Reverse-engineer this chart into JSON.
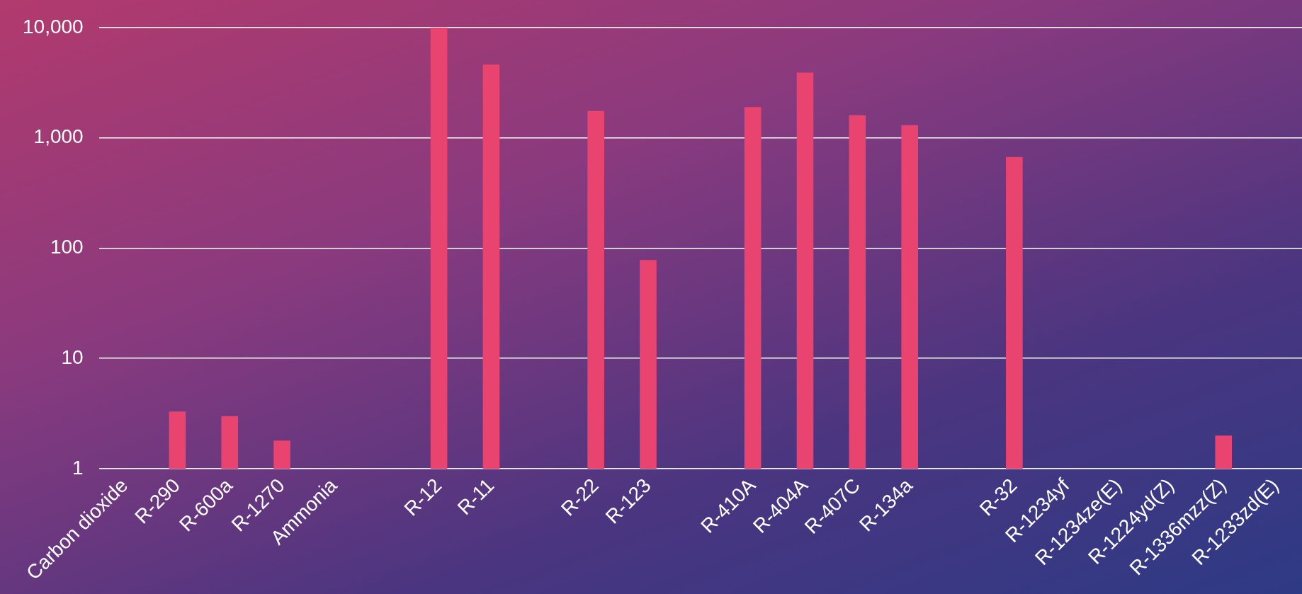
{
  "chart_data": {
    "type": "bar",
    "categories": [
      "Carbon dioxide",
      "R-290",
      "R-600a",
      "R-1270",
      "Ammonia",
      null,
      "R-12",
      "R-11",
      null,
      "R-22",
      "R-123",
      null,
      "R-410A",
      "R-404A",
      "R-407C",
      "R-134a",
      null,
      "R-32",
      "R-1234yf",
      "R-1234ze(E)",
      "R-1224yd(Z)",
      "R-1336mzz(Z)",
      "R-1233zd(E)"
    ],
    "values": [
      1,
      3.3,
      3,
      1.8,
      null,
      null,
      10000,
      4600,
      null,
      1750,
      78,
      null,
      1900,
      3900,
      1600,
      1300,
      null,
      670,
      null,
      null,
      null,
      2,
      1
    ],
    "color": "#e8446f",
    "log": "y",
    "ylim": [
      1,
      10000
    ],
    "yticks": [
      1,
      10,
      100,
      {
        "value": 1000,
        "label": "1,000"
      },
      {
        "value": 10000,
        "label": "10,000"
      }
    ],
    "grid": "y"
  }
}
